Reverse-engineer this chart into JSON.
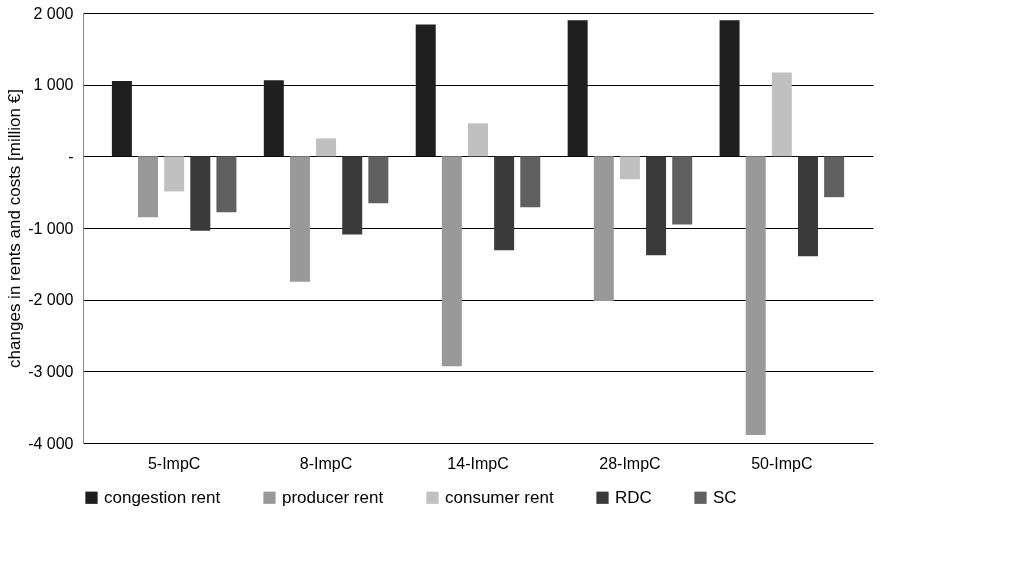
{
  "chart_data": {
    "type": "bar",
    "ylabel": "changes in rents and costs [million €]",
    "categories": [
      "5-ImpC",
      "8-ImpC",
      "14-ImpC",
      "28-ImpC",
      "50-ImpC"
    ],
    "series": [
      {
        "name": "congestion rent",
        "color": "#1f1f1f",
        "values": [
          1050,
          1060,
          1840,
          1900,
          1900
        ]
      },
      {
        "name": "producer rent",
        "color": "#999999",
        "values": [
          -850,
          -1750,
          -2930,
          -2020,
          -3890
        ]
      },
      {
        "name": "consumer rent",
        "color": "#c0c0c0",
        "values": [
          -490,
          250,
          460,
          -320,
          1170
        ]
      },
      {
        "name": "RDC",
        "color": "#3a3a3a",
        "values": [
          -1040,
          -1090,
          -1310,
          -1380,
          -1395
        ]
      },
      {
        "name": "SC",
        "color": "#606060",
        "values": [
          -780,
          -655,
          -710,
          -950,
          -570
        ]
      }
    ],
    "ylim": [
      -4000,
      2000
    ],
    "yticks": [
      {
        "value": -4000,
        "label": "-4 000"
      },
      {
        "value": -3000,
        "label": "-3 000"
      },
      {
        "value": -2000,
        "label": "-2 000"
      },
      {
        "value": -1000,
        "label": "-1 000"
      },
      {
        "value": 0,
        "label": "-"
      },
      {
        "value": 1000,
        "label": "1 000"
      },
      {
        "value": 2000,
        "label": "2 000"
      }
    ],
    "grid": "y",
    "legend": "bottom"
  }
}
